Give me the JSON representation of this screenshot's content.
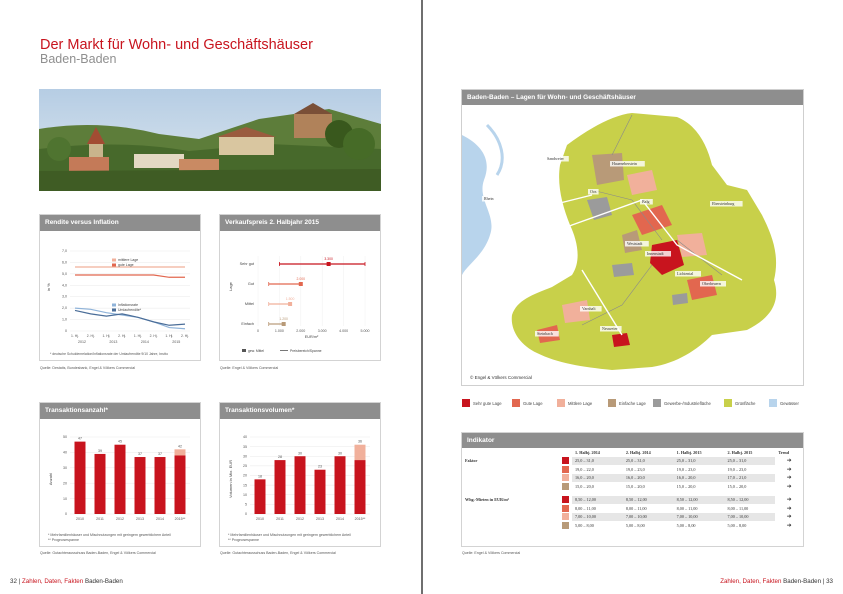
{
  "left": {
    "title": "Der Markt für Wohn- und Geschäftshäuser",
    "subtitle": "Baden-Baden",
    "panels": {
      "rendite": "Rendite versus Inflation",
      "verkauf": "Verkaufspreis 2. Halbjahr 2015",
      "anzahl": "Transaktionsanzahl*",
      "volumen": "Transaktionsvolumen*"
    },
    "captions": {
      "rendite_note": "* deutsche Schuldenrelation/Inflationsrate der Umlaufrendite 9/10 Jahre, brutto",
      "rendite_src": "Quelle: Destatis, Bundesbank, Engel & Völkers Commercial",
      "verkauf_src": "Quelle: Engel & Völkers Commercial",
      "anzahl_note1": "* Mehrfamilienhäuser und Mischnutzungen mit geringem gewerblichem Anteil",
      "anzahl_note2": "** Prognosespanne",
      "anzahl_src": "Quelle: Gutachterausschuss Baden-Baden, Engel & Völkers Commercial",
      "volumen_note1": "* Mehrfamilienhäuser und Mischnutzungen mit geringem gewerblichem Anteil",
      "volumen_note2": "** Prognosespanne",
      "volumen_src": "Quelle: Gutachterausschuss Baden-Baden, Engel & Völkers Commercial"
    },
    "footer": {
      "page": "32",
      "sep": "|",
      "series": "Zahlen, Daten, Fakten",
      "city": "Baden-Baden"
    }
  },
  "right": {
    "map_title": "Baden-Baden – Lagen für Wohn- und Geschäftshäuser",
    "map_copyright": "© Engel & Völkers Commercial",
    "map_labels": [
      "Sandweier",
      "Haueneberstein",
      "Oos",
      "Balg",
      "Ebersteinburg",
      "Weststadt",
      "Innenstadt",
      "Lichtental",
      "Oberbeuern",
      "Varnhalt",
      "Neuweier",
      "Steinbach",
      "Rhein"
    ],
    "legend": [
      "Sehr gute Lage",
      "Gute Lage",
      "Mittlere Lage",
      "Einfache Lage",
      "Gewerbe-/Industriefläche",
      "Grünfläche",
      "Gewässer"
    ],
    "indicator": {
      "title": "Indikator",
      "headers": [
        "1. Halbj. 2014",
        "2. Halbj. 2014",
        "1. Halbj. 2015",
        "2. Halbj. 2015",
        "Trend"
      ],
      "groups": [
        {
          "label": "Faktor",
          "rows": [
            [
              "25,0 – 31,0",
              "25,0 – 31,0",
              "25,0 – 31,0",
              "25,0 – 31,0"
            ],
            [
              "19,0 – 22,0",
              "19,0 – 23,0",
              "19,0 – 23,0",
              "19,0 – 23,0"
            ],
            [
              "16,0 – 20,0",
              "16,0 – 20,0",
              "16,0 – 20,0",
              "17,0 – 21,0"
            ],
            [
              "15,0 – 20,0",
              "15,0 – 20,0",
              "15,0 – 20,0",
              "15,0 – 20,0"
            ]
          ]
        },
        {
          "label": "Whg.-Mieten in EUR/m²",
          "rows": [
            [
              "8,50 – 12,00",
              "8,50 – 12,00",
              "8,50 – 12,00",
              "8,50 – 12,00"
            ],
            [
              "8,00 – 11,00",
              "8,00 – 11,00",
              "8,00 – 11,00",
              "8,00 – 11,00"
            ],
            [
              "7,00 – 10,00",
              "7,00 – 10,00",
              "7,00 – 10,00",
              "7,00 – 10,00"
            ],
            [
              "5,00 – 8,00",
              "5,00 – 8,00",
              "5,00 – 8,00",
              "5,00 – 8,00"
            ]
          ]
        }
      ],
      "trend_symbol": "➜",
      "source": "Quelle: Engel & Völkers Commercial"
    },
    "footer": {
      "series": "Zahlen, Daten, Fakten",
      "city": "Baden-Baden",
      "sep": "|",
      "page": "33"
    }
  },
  "colors": {
    "very_good": "#c8141e",
    "good": "#e2674f",
    "medium": "#f1b09b",
    "simple": "#b89a78",
    "industrial": "#9b9b9b",
    "green": "#c8d04a",
    "water": "#b8d4ec",
    "header": "#8e8e8e",
    "accent": "#c8141e"
  },
  "chart_data": [
    {
      "type": "line",
      "title": "Rendite versus Inflation",
      "categories": [
        "1. Hj.",
        "2. Hj.",
        "1. Hj.",
        "2. Hj.",
        "1. Hj.",
        "2. Hj.",
        "1. Hj.",
        "2. Hj."
      ],
      "years": [
        "2012",
        "2013",
        "2014",
        "2015"
      ],
      "ylabel": "in %",
      "ylim": [
        0,
        7
      ],
      "yticks": [
        "0",
        "1,0",
        "2,0",
        "3,0",
        "4,0",
        "5,0",
        "6,0",
        "7,0"
      ],
      "series": [
        {
          "name": "mittlere Lage",
          "values": [
            5.6,
            5.6,
            5.6,
            5.6,
            5.6,
            5.6,
            5.6,
            5.6
          ]
        },
        {
          "name": "gute Lage",
          "values": [
            4.9,
            4.9,
            4.9,
            4.9,
            4.9,
            4.9,
            4.7,
            4.7
          ]
        },
        {
          "name": "Inflationsrate",
          "values": [
            2.0,
            1.9,
            1.6,
            1.4,
            1.2,
            0.8,
            0.3,
            0.2
          ]
        },
        {
          "name": "Umlaufrendite*",
          "values": [
            1.8,
            1.5,
            1.3,
            1.5,
            1.2,
            0.8,
            0.5,
            0.6
          ]
        }
      ]
    },
    {
      "type": "bar",
      "title": "Verkaufspreis 2. Halbjahr 2015",
      "categories": [
        "Sehr gut",
        "Gut",
        "Mittel",
        "Einfach"
      ],
      "ranges": [
        [
          1000,
          5000
        ],
        [
          500,
          2000
        ],
        [
          500,
          1500
        ],
        [
          500,
          1200
        ]
      ],
      "means": [
        3300,
        2000,
        1500,
        1200
      ],
      "labels": [
        "3.300",
        "2.000",
        "1.500",
        "1.200"
      ],
      "xlabel": "EUR/m²",
      "xlim": [
        0,
        5000
      ],
      "xticks": [
        "0",
        "1.000",
        "2.000",
        "3.000",
        "4.000",
        "5.000"
      ],
      "ylabel": "Lage",
      "legend": [
        "gew. Mittel",
        "Preisbereich/Spanne"
      ]
    },
    {
      "type": "bar",
      "title": "Transaktionsanzahl*",
      "categories": [
        "2010",
        "2011",
        "2012",
        "2013",
        "2014",
        "2015**"
      ],
      "values": [
        47,
        39,
        45,
        37,
        37,
        42
      ],
      "forecast_low": 38,
      "labels": [
        "47",
        "39",
        "45",
        "37",
        "37",
        "42"
      ],
      "ylabel": "Anzahl",
      "ylim": [
        0,
        50
      ],
      "yticks": [
        "0",
        "10",
        "20",
        "30",
        "40",
        "50"
      ]
    },
    {
      "type": "bar",
      "title": "Transaktionsvolumen*",
      "categories": [
        "2010",
        "2011",
        "2012",
        "2013",
        "2014",
        "2015**"
      ],
      "values": [
        18,
        28,
        30,
        23,
        30,
        36
      ],
      "forecast_low": 28,
      "labels": [
        "18",
        "28",
        "30",
        "23",
        "30",
        "36"
      ],
      "ylabel": "Volumen in Mio. EUR",
      "ylim": [
        0,
        40
      ],
      "yticks": [
        "0",
        "5",
        "10",
        "15",
        "20",
        "25",
        "30",
        "35",
        "40"
      ]
    }
  ]
}
